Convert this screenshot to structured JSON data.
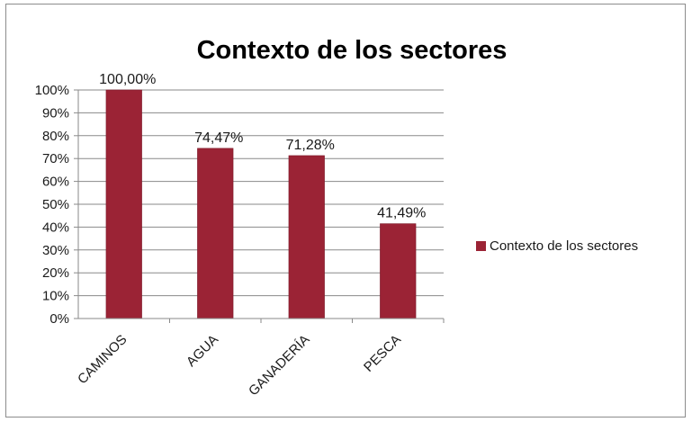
{
  "chart_data": {
    "type": "bar",
    "title": "Contexto de los sectores",
    "categories": [
      "CAMINOS",
      "AGUA",
      "GANADERÍA",
      "PESCA"
    ],
    "series": [
      {
        "name": "Contexto de los sectores",
        "values": [
          100.0,
          74.47,
          71.28,
          41.49
        ],
        "color": "#9b2335"
      }
    ],
    "data_labels": [
      "100,00%",
      "74,47%",
      "71,28%",
      "41,49%"
    ],
    "y_ticks": [
      "0%",
      "10%",
      "20%",
      "30%",
      "40%",
      "50%",
      "60%",
      "70%",
      "80%",
      "90%",
      "100%"
    ],
    "ylim": [
      0,
      100
    ],
    "grid": true,
    "legend_position": "right",
    "xlabel": "",
    "ylabel": ""
  }
}
